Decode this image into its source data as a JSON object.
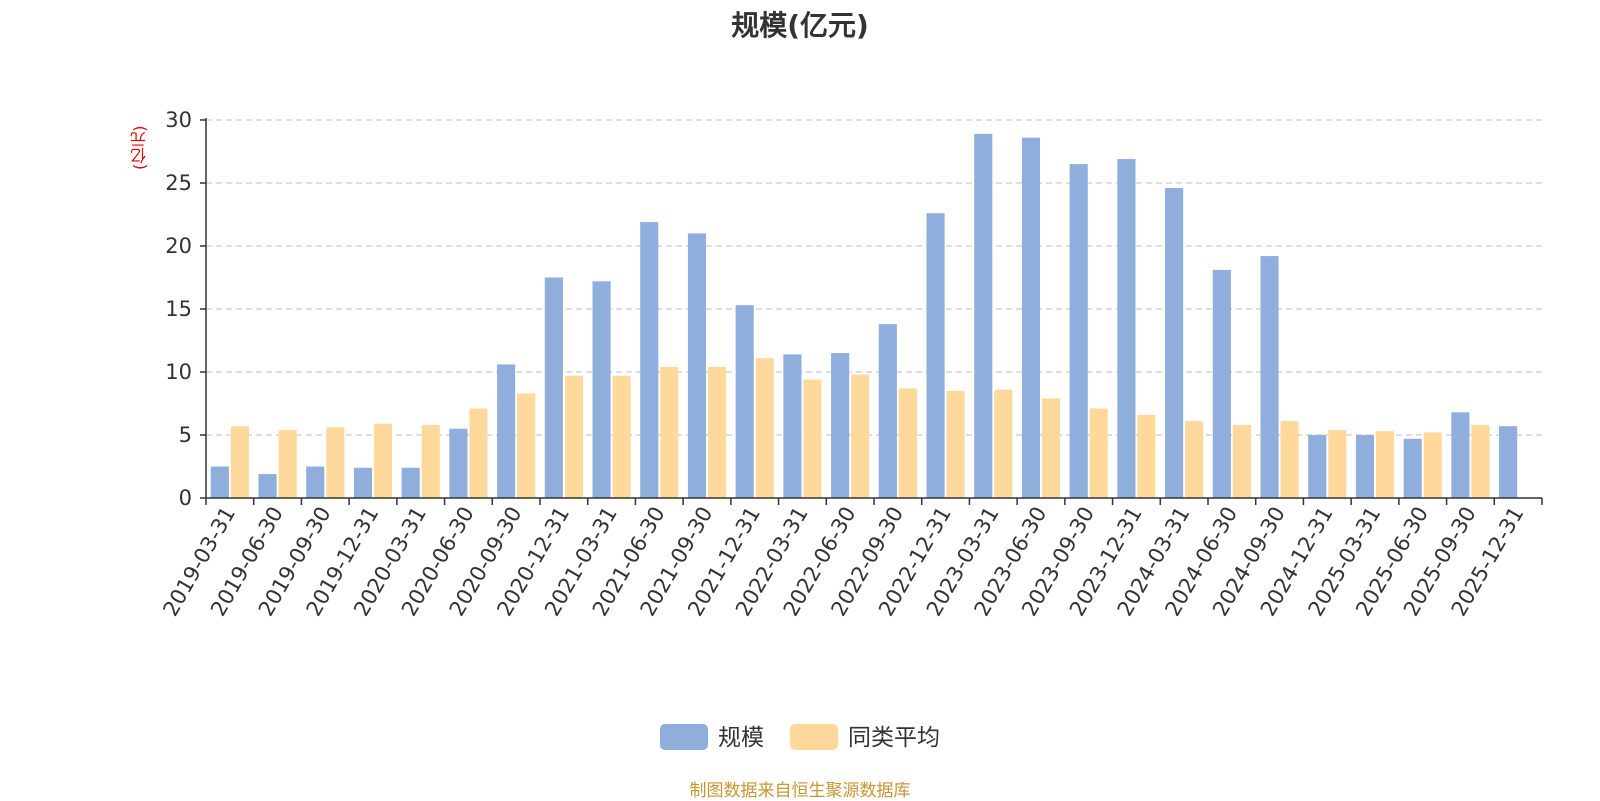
{
  "chart_data": {
    "type": "bar",
    "title": "规模(亿元)",
    "ylabel": "(亿元)",
    "xlabel": "",
    "ylim": [
      0,
      30
    ],
    "yticks": [
      0,
      5,
      10,
      15,
      20,
      25,
      30
    ],
    "grid": true,
    "legend_position": "bottom",
    "categories": [
      "2019-03-31",
      "2019-06-30",
      "2019-09-30",
      "2019-12-31",
      "2020-03-31",
      "2020-06-30",
      "2020-09-30",
      "2020-12-31",
      "2021-03-31",
      "2021-06-30",
      "2021-09-30",
      "2021-12-31",
      "2022-03-31",
      "2022-06-30",
      "2022-09-30",
      "2022-12-31",
      "2023-03-31",
      "2023-06-30",
      "2023-09-30",
      "2023-12-31",
      "2024-03-31",
      "2024-06-30",
      "2024-09-30",
      "2024-12-31",
      "2025-03-31",
      "2025-06-30",
      "2025-09-30",
      "2025-12-31"
    ],
    "series": [
      {
        "name": "规模",
        "color": "#8faedb",
        "values": [
          2.5,
          1.9,
          2.5,
          2.4,
          2.4,
          5.5,
          10.6,
          17.5,
          17.2,
          21.9,
          21.0,
          15.3,
          11.4,
          11.5,
          13.8,
          22.6,
          28.9,
          28.6,
          26.5,
          26.9,
          24.6,
          18.1,
          19.2,
          5.0,
          5.0,
          4.7,
          6.8,
          5.7
        ]
      },
      {
        "name": "同类平均",
        "color": "#ffd99b",
        "values": [
          5.7,
          5.4,
          5.6,
          5.9,
          5.8,
          7.1,
          8.3,
          9.7,
          9.7,
          10.4,
          10.4,
          11.1,
          9.4,
          9.8,
          8.7,
          8.5,
          8.6,
          7.9,
          7.1,
          6.6,
          6.1,
          5.8,
          6.1,
          5.4,
          5.3,
          5.2,
          5.8,
          null
        ]
      }
    ]
  },
  "footer": {
    "source": "制图数据来自恒生聚源数据库"
  }
}
